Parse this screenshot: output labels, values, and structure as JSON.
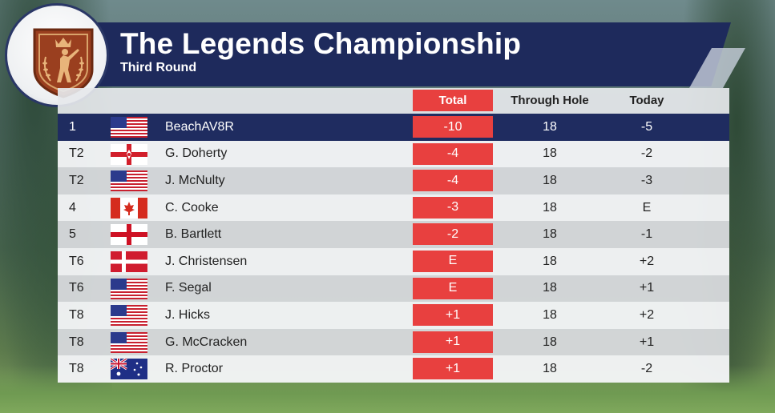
{
  "header": {
    "title": "The Legends Championship",
    "subtitle": "Third Round",
    "logo_icon": "golfer-crest-icon"
  },
  "columns": {
    "total": "Total",
    "through": "Through Hole",
    "today": "Today"
  },
  "colors": {
    "navy": "#1e2a5c",
    "red": "#e8403f"
  },
  "leaderboard": [
    {
      "pos": "1",
      "flag": "usa",
      "player": "BeachAV8R",
      "total": "-10",
      "through": "18",
      "today": "-5"
    },
    {
      "pos": "T2",
      "flag": "northern-ireland",
      "player": "G. Doherty",
      "total": "-4",
      "through": "18",
      "today": "-2"
    },
    {
      "pos": "T2",
      "flag": "usa",
      "player": "J. McNulty",
      "total": "-4",
      "through": "18",
      "today": "-3"
    },
    {
      "pos": "4",
      "flag": "canada",
      "player": "C. Cooke",
      "total": "-3",
      "through": "18",
      "today": "E"
    },
    {
      "pos": "5",
      "flag": "england",
      "player": "B. Bartlett",
      "total": "-2",
      "through": "18",
      "today": "-1"
    },
    {
      "pos": "T6",
      "flag": "denmark",
      "player": "J. Christensen",
      "total": "E",
      "through": "18",
      "today": "+2"
    },
    {
      "pos": "T6",
      "flag": "usa",
      "player": "F. Segal",
      "total": "E",
      "through": "18",
      "today": "+1"
    },
    {
      "pos": "T8",
      "flag": "usa",
      "player": "J. Hicks",
      "total": "+1",
      "through": "18",
      "today": "+2"
    },
    {
      "pos": "T8",
      "flag": "usa",
      "player": "G. McCracken",
      "total": "+1",
      "through": "18",
      "today": "+1"
    },
    {
      "pos": "T8",
      "flag": "australia",
      "player": "R. Proctor",
      "total": "+1",
      "through": "18",
      "today": "-2"
    }
  ]
}
